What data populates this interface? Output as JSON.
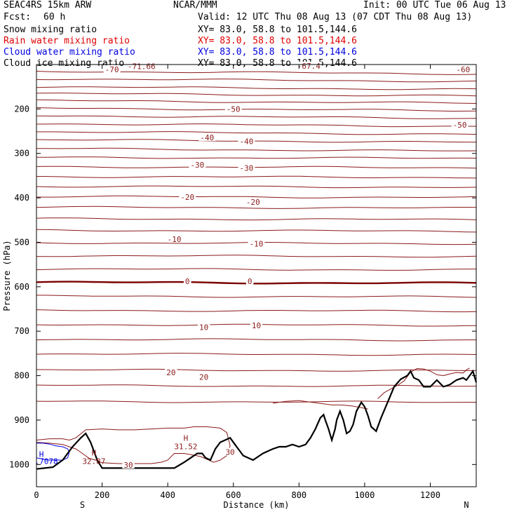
{
  "header": {
    "model": "SEAC4RS 15km ARW",
    "center": "NCAR/MMM",
    "init": "Init: 00 UTC Tue 06 Aug 13",
    "fcst_label": "Fcst:",
    "fcst_value": "60 h",
    "valid": "Valid: 12 UTC Thu 08 Aug 13 (07 CDT Thu 08 Aug 13)"
  },
  "fields": [
    {
      "name": "Snow mixing ratio",
      "xy": "XY=  83.0, 58.8 to 101.5,144.6",
      "color": "#000000"
    },
    {
      "name": "Rain water mixing ratio",
      "xy": "XY=  83.0, 58.8 to 101.5,144.6",
      "color": "#e00000"
    },
    {
      "name": "Cloud water mixing ratio",
      "xy": "XY=  83.0, 58.8 to 101.5,144.6",
      "color": "#0000e0"
    },
    {
      "name": "Cloud ice mixing ratio",
      "xy": "XY=  83.0, 58.8 to 101.5,144.6",
      "color": "#000000"
    }
  ],
  "colors": {
    "isotherm": "#8b1a1a",
    "zero_isotherm": "#7a0000",
    "terrain": "#000000",
    "rain_water": "#e00000",
    "cloud_water": "#0000e0"
  },
  "chart_data": {
    "type": "line",
    "xlabel": "Distance (km)",
    "ylabel": "Pressure (hPa)",
    "xlim": [
      0,
      1340
    ],
    "ylim": [
      1050,
      100
    ],
    "xticks": [
      0,
      200,
      400,
      600,
      800,
      1000,
      1200
    ],
    "yticks": [
      200,
      300,
      400,
      500,
      600,
      700,
      800,
      900,
      1000
    ],
    "bottom_labels": {
      "left": "S",
      "right": "N"
    },
    "isotherm_pressures": [
      115,
      132,
      150,
      165,
      181,
      198,
      215,
      233,
      251,
      269,
      289,
      309,
      330,
      352,
      374,
      397,
      421,
      447,
      473,
      501,
      530,
      560,
      590,
      621,
      653,
      685,
      718,
      751,
      787,
      822,
      858
    ],
    "zero_isotherm_pressure": 590,
    "isotherm_labels": [
      {
        "text": "-71.66",
        "x": 320,
        "p": 104
      },
      {
        "text": "-70",
        "x": 230,
        "p": 111
      },
      {
        "text": "-67.4",
        "x": 830,
        "p": 103
      },
      {
        "text": "-60",
        "x": 1300,
        "p": 111
      },
      {
        "text": "-50",
        "x": 600,
        "p": 200
      },
      {
        "text": "-50",
        "x": 1290,
        "p": 236
      },
      {
        "text": "-40",
        "x": 520,
        "p": 264
      },
      {
        "text": "-40",
        "x": 640,
        "p": 273
      },
      {
        "text": "-30",
        "x": 490,
        "p": 326
      },
      {
        "text": "-30",
        "x": 640,
        "p": 333
      },
      {
        "text": "-20",
        "x": 460,
        "p": 398
      },
      {
        "text": "-20",
        "x": 660,
        "p": 409
      },
      {
        "text": "-10",
        "x": 420,
        "p": 493
      },
      {
        "text": "-10",
        "x": 670,
        "p": 503
      },
      {
        "text": "0",
        "x": 460,
        "p": 588
      },
      {
        "text": "0",
        "x": 650,
        "p": 588
      },
      {
        "text": "10",
        "x": 510,
        "p": 691
      },
      {
        "text": "10",
        "x": 670,
        "p": 687
      },
      {
        "text": "20",
        "x": 410,
        "p": 793
      },
      {
        "text": "20",
        "x": 510,
        "p": 803
      },
      {
        "text": "30",
        "x": 280,
        "p": 1001
      },
      {
        "text": "30",
        "x": 590,
        "p": 972
      }
    ],
    "highs": [
      {
        "label": "H",
        "value": "31.52",
        "x": 455,
        "p": 958
      },
      {
        "label": "H",
        "value": "32.87",
        "x": 175,
        "p": 991
      }
    ],
    "cloud_labels": [
      {
        "text": "H",
        "x": 15,
        "p": 983
      },
      {
        "text": ".7078",
        "x": 30,
        "p": 999
      }
    ],
    "terrain": {
      "x": [
        0,
        25,
        50,
        80,
        110,
        135,
        150,
        165,
        185,
        200,
        230,
        280,
        330,
        380,
        420,
        450,
        470,
        490,
        505,
        515,
        530,
        545,
        560,
        575,
        590,
        610,
        630,
        660,
        690,
        720,
        740,
        760,
        780,
        800,
        820,
        835,
        850,
        865,
        875,
        880,
        890,
        900,
        910,
        915,
        925,
        935,
        945,
        955,
        965,
        975,
        990,
        1000,
        1010,
        1020,
        1035,
        1050,
        1070,
        1090,
        1110,
        1130,
        1140,
        1150,
        1165,
        1180,
        1200,
        1220,
        1240,
        1260,
        1280,
        1300,
        1310,
        1320,
        1330,
        1340
      ],
      "p": [
        1010,
        1008,
        1006,
        990,
        960,
        940,
        930,
        950,
        990,
        1008,
        1008,
        1008,
        1008,
        1008,
        1008,
        995,
        985,
        975,
        975,
        985,
        990,
        965,
        950,
        945,
        940,
        960,
        980,
        990,
        975,
        965,
        960,
        960,
        955,
        960,
        955,
        940,
        920,
        895,
        888,
        900,
        920,
        945,
        920,
        900,
        880,
        900,
        930,
        925,
        910,
        880,
        860,
        870,
        890,
        915,
        925,
        895,
        860,
        825,
        808,
        800,
        790,
        805,
        810,
        825,
        825,
        810,
        825,
        820,
        810,
        805,
        810,
        800,
        790,
        815
      ]
    },
    "rain_water_contour": {
      "x": [
        0,
        40,
        80,
        100,
        120,
        150,
        200,
        250,
        300,
        350,
        400,
        450,
        480,
        520,
        560,
        580,
        590,
        580,
        560,
        540,
        500,
        450,
        420,
        400,
        380,
        350,
        300,
        250,
        200,
        180,
        160,
        140,
        120,
        100,
        80,
        40,
        0
      ],
      "p": [
        945,
        942,
        942,
        945,
        940,
        922,
        920,
        922,
        922,
        920,
        918,
        918,
        915,
        915,
        918,
        928,
        958,
        980,
        990,
        995,
        982,
        975,
        975,
        990,
        995,
        998,
        998,
        998,
        996,
        990,
        986,
        975,
        965,
        960,
        955,
        952,
        950
      ]
    },
    "rain_water_upper": {
      "x": [
        1040,
        1060,
        1080,
        1100,
        1120,
        1140,
        1160,
        1180,
        1200,
        1220,
        1240,
        1260,
        1280,
        1300,
        1310,
        1320
      ],
      "p": [
        852,
        838,
        830,
        822,
        812,
        792,
        784,
        785,
        790,
        798,
        800,
        796,
        793,
        794,
        787,
        783
      ]
    },
    "rain_water_mid": {
      "x": [
        720,
        760,
        800,
        840,
        870,
        900,
        930,
        960,
        990,
        1010
      ],
      "p": [
        862,
        858,
        856,
        860,
        863,
        866,
        866,
        868,
        872,
        875
      ]
    },
    "cloud_water_contour": {
      "x": [
        0,
        20,
        40,
        60,
        80,
        95,
        100,
        95,
        80,
        60,
        40,
        20,
        0
      ],
      "p": [
        952,
        952,
        954,
        958,
        960,
        965,
        972,
        985,
        990,
        990,
        990,
        988,
        985
      ]
    }
  }
}
